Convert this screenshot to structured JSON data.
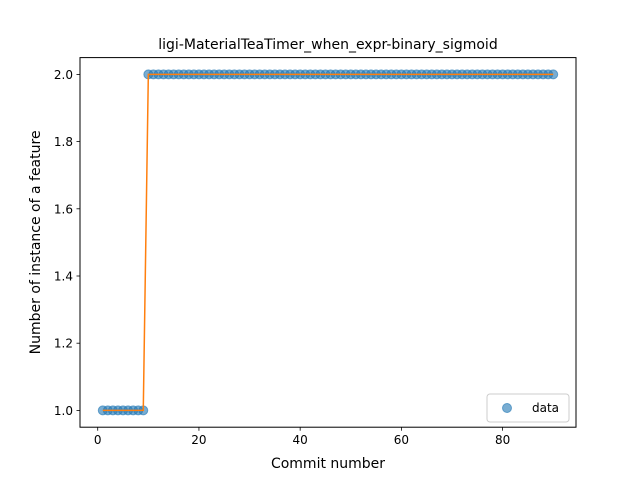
{
  "chart_data": {
    "type": "scatter",
    "title": "ligi-MaterialTeaTimer_when_expr-binary_sigmoid",
    "xlabel": "Commit number",
    "ylabel": "Number of instance of a feature",
    "xlim": [
      -3.5,
      94.5
    ],
    "ylim": [
      0.95,
      2.05
    ],
    "xticks": [
      0,
      20,
      40,
      60,
      80
    ],
    "yticks": [
      1.0,
      1.2,
      1.4,
      1.6,
      1.8,
      2.0
    ],
    "xtick_labels": [
      "0",
      "20",
      "40",
      "60",
      "80"
    ],
    "ytick_labels": [
      "1.0",
      "1.2",
      "1.4",
      "1.6",
      "1.8",
      "2.0"
    ],
    "grid": false,
    "legend_position": "bottom-right",
    "series": [
      {
        "name": "data",
        "kind": "points",
        "color": "#1f77b4",
        "x": [
          1,
          2,
          3,
          4,
          5,
          6,
          7,
          8,
          9,
          10,
          11,
          12,
          13,
          14,
          15,
          16,
          17,
          18,
          19,
          20,
          21,
          22,
          23,
          24,
          25,
          26,
          27,
          28,
          29,
          30,
          31,
          32,
          33,
          34,
          35,
          36,
          37,
          38,
          39,
          40,
          41,
          42,
          43,
          44,
          45,
          46,
          47,
          48,
          49,
          50,
          51,
          52,
          53,
          54,
          55,
          56,
          57,
          58,
          59,
          60,
          61,
          62,
          63,
          64,
          65,
          66,
          67,
          68,
          69,
          70,
          71,
          72,
          73,
          74,
          75,
          76,
          77,
          78,
          79,
          80,
          81,
          82,
          83,
          84,
          85,
          86,
          87,
          88,
          89,
          90
        ],
        "y": [
          1,
          1,
          1,
          1,
          1,
          1,
          1,
          1,
          1,
          2,
          2,
          2,
          2,
          2,
          2,
          2,
          2,
          2,
          2,
          2,
          2,
          2,
          2,
          2,
          2,
          2,
          2,
          2,
          2,
          2,
          2,
          2,
          2,
          2,
          2,
          2,
          2,
          2,
          2,
          2,
          2,
          2,
          2,
          2,
          2,
          2,
          2,
          2,
          2,
          2,
          2,
          2,
          2,
          2,
          2,
          2,
          2,
          2,
          2,
          2,
          2,
          2,
          2,
          2,
          2,
          2,
          2,
          2,
          2,
          2,
          2,
          2,
          2,
          2,
          2,
          2,
          2,
          2,
          2,
          2,
          2,
          2,
          2,
          2,
          2,
          2,
          2,
          2,
          2,
          2
        ]
      },
      {
        "kind": "line",
        "color": "#ff7f0e",
        "x": [
          1,
          9,
          10,
          90
        ],
        "y": [
          1,
          1,
          2,
          2
        ]
      }
    ]
  }
}
